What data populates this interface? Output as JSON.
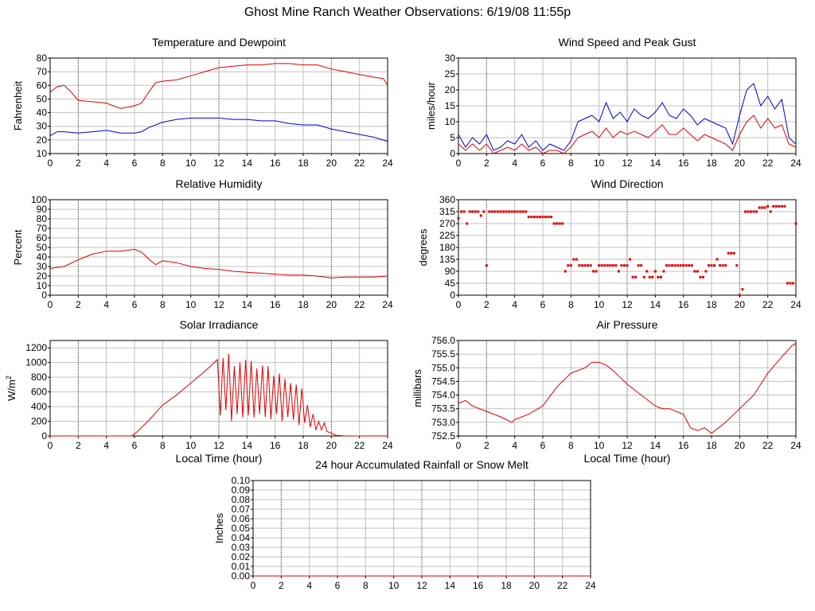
{
  "page": {
    "title": "Ghost Mine Ranch Weather Observations: 6/19/08 11:55p"
  },
  "colors": {
    "red": "#dd0000",
    "blue": "#0000cc",
    "grid": "#c0c0c0",
    "axis": "#000000"
  },
  "chart_data": [
    {
      "id": "temp",
      "type": "line",
      "title": "Temperature and Dewpoint",
      "xlabel": "",
      "ylabel": "Fahrenheit",
      "xlim": [
        0,
        24
      ],
      "ylim": [
        10,
        80
      ],
      "xticks": [
        0,
        2,
        4,
        6,
        8,
        10,
        12,
        14,
        16,
        18,
        20,
        22,
        24
      ],
      "yticks": [
        10,
        20,
        30,
        40,
        50,
        60,
        70,
        80
      ],
      "ytick_labels": [
        "10",
        "20",
        "30",
        "40",
        "50",
        "60",
        "70",
        "80"
      ],
      "grid": true,
      "series": [
        {
          "color": "#dd0000",
          "x": [
            0,
            0.5,
            1,
            1.5,
            2,
            3,
            4,
            4.5,
            5,
            5.5,
            6,
            6.5,
            7,
            7.5,
            8,
            9,
            10,
            11,
            12,
            13,
            14,
            15,
            16,
            17,
            18,
            19,
            20,
            21,
            22,
            23,
            23.7,
            24
          ],
          "y": [
            55,
            59,
            60,
            55,
            49,
            48,
            47,
            45,
            43,
            44,
            45,
            47,
            55,
            62,
            63,
            64,
            67,
            70,
            73,
            74,
            75,
            75,
            76,
            76,
            75,
            75,
            72,
            70,
            68,
            66,
            65,
            60
          ]
        },
        {
          "color": "#0000cc",
          "x": [
            0,
            0.5,
            1,
            2,
            3,
            4,
            5,
            6,
            6.5,
            7,
            8,
            9,
            10,
            11,
            12,
            13,
            14,
            15,
            16,
            17,
            18,
            19,
            20,
            21,
            22,
            23,
            24
          ],
          "y": [
            23,
            26,
            26,
            25,
            26,
            27,
            25,
            25,
            26,
            29,
            33,
            35,
            36,
            36,
            36,
            35,
            35,
            34,
            34,
            32,
            31,
            31,
            28,
            26,
            24,
            22,
            19
          ]
        }
      ]
    },
    {
      "id": "wind",
      "type": "line",
      "title": "Wind Speed and Peak Gust",
      "xlabel": "",
      "ylabel": "miles/hour",
      "xlim": [
        0,
        24
      ],
      "ylim": [
        0,
        30
      ],
      "xticks": [
        0,
        2,
        4,
        6,
        8,
        10,
        12,
        14,
        16,
        18,
        20,
        22,
        24
      ],
      "yticks": [
        0,
        5,
        10,
        15,
        20,
        25,
        30
      ],
      "ytick_labels": [
        "0",
        "5",
        "10",
        "15",
        "20",
        "25",
        "30"
      ],
      "grid": true,
      "series": [
        {
          "color": "#0000cc",
          "x": [
            0,
            0.5,
            1,
            1.5,
            2,
            2.5,
            3,
            3.5,
            4,
            4.5,
            5,
            5.5,
            6,
            6.5,
            7,
            7.5,
            8,
            8.5,
            9,
            9.5,
            10,
            10.5,
            11,
            11.5,
            12,
            12.5,
            13,
            13.5,
            14,
            14.5,
            15,
            15.5,
            16,
            16.5,
            17,
            17.5,
            18,
            18.5,
            19,
            19.5,
            20,
            20.5,
            21,
            21.5,
            22,
            22.5,
            23,
            23.5,
            24
          ],
          "y": [
            6,
            2,
            5,
            3,
            6,
            1,
            2,
            4,
            3,
            6,
            2,
            4,
            1,
            3,
            2,
            1,
            4,
            10,
            11,
            12,
            10,
            16,
            11,
            13,
            10,
            14,
            12,
            11,
            13,
            16,
            12,
            11,
            14,
            12,
            9,
            11,
            10,
            9,
            8,
            3,
            12,
            20,
            22,
            15,
            18,
            14,
            17,
            5,
            3
          ]
        },
        {
          "color": "#dd0000",
          "x": [
            0,
            0.5,
            1,
            1.5,
            2,
            2.5,
            3,
            3.5,
            4,
            4.5,
            5,
            5.5,
            6,
            6.5,
            7,
            7.5,
            8,
            8.5,
            9,
            9.5,
            10,
            10.5,
            11,
            11.5,
            12,
            12.5,
            13,
            13.5,
            14,
            14.5,
            15,
            15.5,
            16,
            16.5,
            17,
            17.5,
            18,
            18.5,
            19,
            19.5,
            20,
            20.5,
            21,
            21.5,
            22,
            22.5,
            23,
            23.5,
            24
          ],
          "y": [
            3,
            1,
            3,
            1,
            3,
            0,
            1,
            2,
            1,
            3,
            1,
            2,
            0,
            1,
            1,
            0,
            2,
            5,
            6,
            7,
            5,
            8,
            5,
            7,
            6,
            7,
            6,
            5,
            7,
            9,
            6,
            6,
            8,
            6,
            4,
            6,
            5,
            4,
            3,
            1,
            6,
            10,
            12,
            8,
            11,
            8,
            9,
            3,
            2
          ]
        }
      ]
    },
    {
      "id": "rh",
      "type": "line",
      "title": "Relative Humidity",
      "xlabel": "",
      "ylabel": "Percent",
      "xlim": [
        0,
        24
      ],
      "ylim": [
        0,
        100
      ],
      "xticks": [
        0,
        2,
        4,
        6,
        8,
        10,
        12,
        14,
        16,
        18,
        20,
        22,
        24
      ],
      "yticks": [
        0,
        10,
        20,
        30,
        40,
        50,
        60,
        70,
        80,
        90,
        100
      ],
      "ytick_labels": [
        "0",
        "10",
        "20",
        "30",
        "40",
        "50",
        "60",
        "70",
        "80",
        "90",
        "100"
      ],
      "grid": true,
      "series": [
        {
          "color": "#dd0000",
          "x": [
            0,
            1,
            2,
            3,
            4,
            5,
            6,
            6.5,
            7,
            7.5,
            8,
            9,
            10,
            11,
            12,
            13,
            14,
            15,
            16,
            17,
            18,
            19,
            20,
            21,
            22,
            23,
            24
          ],
          "y": [
            28,
            30,
            37,
            43,
            46,
            46,
            48,
            45,
            38,
            32,
            36,
            34,
            30,
            28,
            27,
            25,
            24,
            23,
            22,
            21,
            21,
            20,
            18,
            19,
            19,
            19,
            20
          ]
        }
      ]
    },
    {
      "id": "wdir",
      "type": "scatter",
      "title": "Wind Direction",
      "xlabel": "",
      "ylabel": "degrees",
      "xlim": [
        0,
        24
      ],
      "ylim": [
        0,
        360
      ],
      "xticks": [
        0,
        2,
        4,
        6,
        8,
        10,
        12,
        14,
        16,
        18,
        20,
        22,
        24
      ],
      "yticks": [
        0,
        45,
        90,
        135,
        180,
        225,
        270,
        315,
        360
      ],
      "ytick_labels": [
        "0",
        "45",
        "90",
        "135",
        "180",
        "225",
        "270",
        "315",
        "360"
      ],
      "grid": true,
      "series": [
        {
          "color": "#dd0000",
          "x": [
            0,
            0.2,
            0.4,
            0.6,
            0.8,
            1,
            1.2,
            1.4,
            1.6,
            1.8,
            2,
            2.2,
            2.4,
            2.6,
            2.8,
            3,
            3.2,
            3.4,
            3.6,
            3.8,
            4,
            4.2,
            4.4,
            4.6,
            4.8,
            5,
            5.2,
            5.4,
            5.6,
            5.8,
            6,
            6.2,
            6.4,
            6.6,
            6.8,
            7,
            7.2,
            7.4,
            7.6,
            7.8,
            8,
            8.2,
            8.4,
            8.6,
            8.8,
            9,
            9.2,
            9.4,
            9.6,
            9.8,
            10,
            10.2,
            10.4,
            10.6,
            10.8,
            11,
            11.2,
            11.4,
            11.6,
            11.8,
            12,
            12.2,
            12.4,
            12.6,
            12.8,
            13,
            13.2,
            13.4,
            13.6,
            13.8,
            14,
            14.2,
            14.4,
            14.6,
            14.8,
            15,
            15.2,
            15.4,
            15.6,
            15.8,
            16,
            16.2,
            16.4,
            16.6,
            16.8,
            17,
            17.2,
            17.4,
            17.6,
            17.8,
            18,
            18.2,
            18.4,
            18.6,
            18.8,
            19,
            19.2,
            19.4,
            19.6,
            19.8,
            20,
            20.2,
            20.4,
            20.6,
            20.8,
            21,
            21.2,
            21.4,
            21.6,
            21.8,
            22,
            22.2,
            22.4,
            22.6,
            22.8,
            23,
            23.2,
            23.4,
            23.6,
            23.8,
            24
          ],
          "y": [
            290,
            315,
            315,
            270,
            315,
            315,
            315,
            315,
            300,
            315,
            112,
            315,
            315,
            315,
            315,
            315,
            315,
            315,
            315,
            315,
            315,
            315,
            315,
            315,
            315,
            295,
            295,
            295,
            295,
            295,
            295,
            295,
            295,
            295,
            270,
            270,
            270,
            270,
            90,
            112,
            112,
            135,
            135,
            112,
            112,
            112,
            112,
            112,
            90,
            90,
            112,
            112,
            112,
            112,
            112,
            112,
            112,
            90,
            112,
            112,
            112,
            135,
            68,
            68,
            112,
            112,
            68,
            90,
            68,
            68,
            90,
            68,
            68,
            90,
            112,
            112,
            112,
            112,
            112,
            112,
            112,
            112,
            112,
            112,
            90,
            90,
            68,
            68,
            90,
            112,
            112,
            112,
            135,
            112,
            112,
            112,
            158,
            158,
            158,
            112,
            0,
            22,
            315,
            315,
            315,
            315,
            315,
            330,
            330,
            330,
            335,
            315,
            335,
            335,
            335,
            335,
            335,
            45,
            45,
            45,
            270
          ]
        }
      ]
    },
    {
      "id": "solar",
      "type": "line",
      "title": "Solar Irradiance",
      "xlabel": "Local Time (hour)",
      "ylabel": "W/m²",
      "xlim": [
        0,
        24
      ],
      "ylim": [
        0,
        1300
      ],
      "xticks": [
        0,
        2,
        4,
        6,
        8,
        10,
        12,
        14,
        16,
        18,
        20,
        22,
        24
      ],
      "yticks": [
        0,
        200,
        400,
        600,
        800,
        1000,
        1200
      ],
      "ytick_labels": [
        "0",
        "200",
        "400",
        "600",
        "800",
        "1000",
        "1200"
      ],
      "grid": true,
      "series": [
        {
          "color": "#dd0000",
          "x": [
            0,
            5.8,
            6.2,
            7,
            8,
            9,
            10,
            11,
            11.5,
            11.9,
            12.1,
            12.3,
            12.5,
            12.7,
            12.9,
            13.1,
            13.3,
            13.5,
            13.7,
            13.9,
            14.1,
            14.3,
            14.5,
            14.7,
            14.9,
            15.1,
            15.3,
            15.5,
            15.7,
            15.9,
            16.1,
            16.3,
            16.5,
            16.7,
            16.9,
            17.1,
            17.3,
            17.5,
            17.7,
            17.9,
            18.1,
            18.3,
            18.5,
            18.7,
            18.9,
            19.1,
            19.3,
            19.5,
            19.7,
            20,
            20.3,
            21,
            24
          ],
          "y": [
            0,
            0,
            60,
            210,
            420,
            560,
            720,
            880,
            970,
            1040,
            280,
            1060,
            350,
            1120,
            200,
            950,
            300,
            1000,
            250,
            1040,
            280,
            1020,
            250,
            920,
            300,
            960,
            260,
            950,
            230,
            820,
            300,
            850,
            200,
            780,
            260,
            720,
            220,
            700,
            150,
            650,
            180,
            420,
            120,
            300,
            80,
            200,
            80,
            180,
            60,
            40,
            10,
            0,
            0
          ]
        }
      ]
    },
    {
      "id": "press",
      "type": "line",
      "title": "Air Pressure",
      "xlabel": "Local Time (hour)",
      "ylabel": "millibars",
      "xlim": [
        0,
        24
      ],
      "ylim": [
        752.5,
        756.0
      ],
      "xticks": [
        0,
        2,
        4,
        6,
        8,
        10,
        12,
        14,
        16,
        18,
        20,
        22,
        24
      ],
      "yticks": [
        752.5,
        753.0,
        753.5,
        754.0,
        754.5,
        755.0,
        755.5,
        756.0
      ],
      "ytick_labels": [
        "752.5",
        "753.0",
        "753.5",
        "754.0",
        "754.5",
        "755.0",
        "755.5",
        "756.0"
      ],
      "grid": true,
      "series": [
        {
          "color": "#dd0000",
          "x": [
            0,
            0.5,
            1,
            2,
            3,
            3.8,
            4,
            4.5,
            5,
            6,
            7,
            8,
            9,
            9.5,
            10,
            10.5,
            11,
            12,
            13,
            14,
            14.5,
            15,
            16,
            16.5,
            17,
            17.5,
            18,
            18.5,
            19,
            20,
            21,
            22,
            23,
            23.7,
            24
          ],
          "y": [
            753.7,
            753.8,
            753.6,
            753.4,
            753.2,
            753.0,
            753.1,
            753.2,
            753.3,
            753.6,
            754.3,
            754.8,
            755.0,
            755.2,
            755.2,
            755.1,
            754.9,
            754.4,
            754.0,
            753.6,
            753.5,
            753.5,
            753.3,
            752.8,
            752.7,
            752.8,
            752.6,
            752.8,
            753.0,
            753.5,
            754.0,
            754.8,
            755.4,
            755.8,
            755.9
          ]
        }
      ]
    },
    {
      "id": "rain",
      "type": "line",
      "title": "24 hour Accumulated Rainfall or Snow Melt",
      "xlabel": "",
      "ylabel": "Inches",
      "xlim": [
        0,
        24
      ],
      "ylim": [
        0,
        0.1
      ],
      "xticks": [
        0,
        2,
        4,
        6,
        8,
        10,
        12,
        14,
        16,
        18,
        20,
        22,
        24
      ],
      "yticks": [
        0,
        0.01,
        0.02,
        0.03,
        0.04,
        0.05,
        0.06,
        0.07,
        0.08,
        0.09,
        0.1
      ],
      "ytick_labels": [
        "0.00",
        "0.01",
        "0.02",
        "0.03",
        "0.04",
        "0.05",
        "0.06",
        "0.07",
        "0.08",
        "0.09",
        "0.10"
      ],
      "grid": true,
      "series": [
        {
          "color": "#dd0000",
          "x": [
            0,
            24
          ],
          "y": [
            0,
            0
          ]
        }
      ]
    }
  ]
}
